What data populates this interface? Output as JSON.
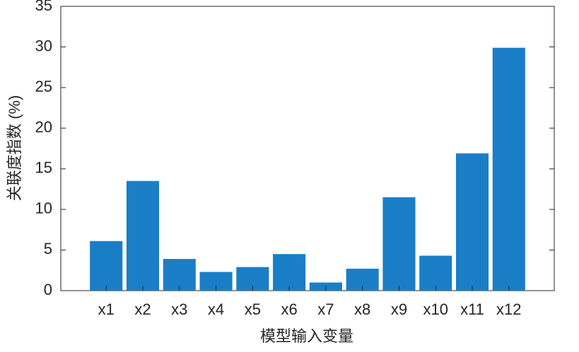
{
  "chart_data": {
    "type": "bar",
    "x_label": "模型输入变量",
    "y_label": "关联度指数 (%)",
    "categories": [
      "x1",
      "x2",
      "x3",
      "x4",
      "x5",
      "x6",
      "x7",
      "x8",
      "x9",
      "x10",
      "x11",
      "x12"
    ],
    "values": [
      6.1,
      13.5,
      3.9,
      2.3,
      2.9,
      4.5,
      1.0,
      2.7,
      11.5,
      4.3,
      16.9,
      29.9
    ],
    "color": "#1a7ec7",
    "ylim": [
      0,
      35
    ],
    "yticks": [
      0,
      5,
      10,
      15,
      20,
      25,
      30,
      35
    ],
    "grid": false
  }
}
